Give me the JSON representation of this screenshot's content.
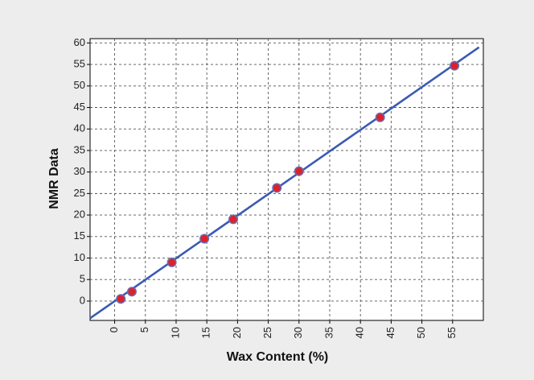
{
  "chart_data": {
    "type": "scatter",
    "title": "",
    "xlabel": "Wax Content (%)",
    "ylabel": "NMR Data",
    "xlim": [
      -4,
      60
    ],
    "ylim": [
      -4.5,
      61
    ],
    "x_ticks": [
      "0",
      "5",
      "10",
      "15",
      "20",
      "25",
      "30",
      "35",
      "40",
      "45",
      "50",
      "55"
    ],
    "y_ticks": [
      "0",
      "5",
      "10",
      "15",
      "20",
      "25",
      "30",
      "35",
      "40",
      "45",
      "50",
      "55",
      "60"
    ],
    "grid": true,
    "grid_style": "dashed",
    "legend": "none",
    "series": [
      {
        "kind": "points",
        "x": [
          1.0,
          2.8,
          9.3,
          14.6,
          19.3,
          26.4,
          30.0,
          43.2,
          55.3
        ],
        "y": [
          0.5,
          2.2,
          9.0,
          14.5,
          19.0,
          26.3,
          30.2,
          42.7,
          54.7
        ],
        "marker_color": "#e0202a",
        "marker_edge_color": "#6b6baa"
      },
      {
        "kind": "fit-line",
        "x": [
          -4.0,
          59.3
        ],
        "y": [
          -4.0,
          59.0
        ],
        "color": "#3a5ab4"
      }
    ]
  },
  "colors": {
    "page_background": "#ededed",
    "plot_background": "#ffffff",
    "grid": "#555555",
    "axis": "#000000"
  }
}
